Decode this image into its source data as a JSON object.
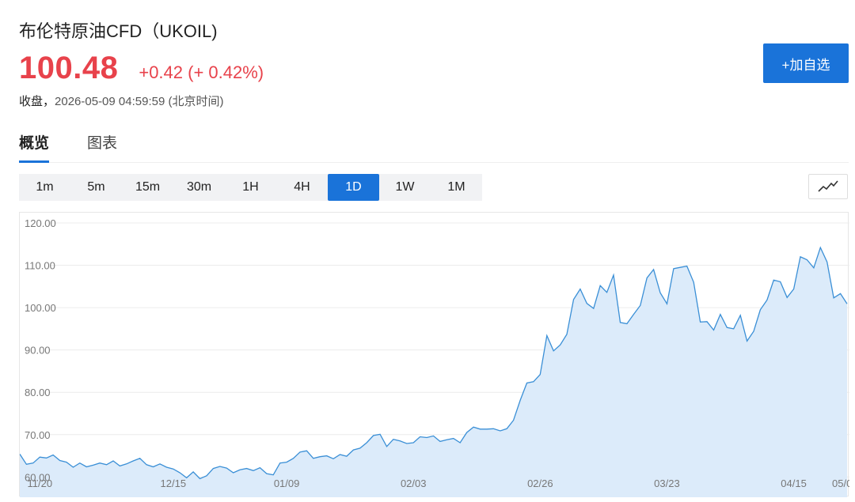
{
  "header": {
    "title": "布伦特原油CFD（UKOIL)",
    "price": "100.48",
    "change": "+0.42 (+ 0.42%)",
    "status": "收盘，",
    "timestamp": "2026-05-09 04:59:59",
    "timezone": "(北京时间)",
    "watch_button": "+加自选"
  },
  "tabs": [
    {
      "label": "概览",
      "active": true
    },
    {
      "label": "图表",
      "active": false
    }
  ],
  "intervals": [
    {
      "label": "1m",
      "active": false
    },
    {
      "label": "5m",
      "active": false
    },
    {
      "label": "15m",
      "active": false
    },
    {
      "label": "30m",
      "active": false
    },
    {
      "label": "1H",
      "active": false
    },
    {
      "label": "4H",
      "active": false
    },
    {
      "label": "1D",
      "active": true
    },
    {
      "label": "1W",
      "active": false
    },
    {
      "label": "1M",
      "active": false
    }
  ],
  "chart_type_icon": "line-chart-icon",
  "colors": {
    "accent": "#1a73d9",
    "up": "#e8424b",
    "line": "#3a8fd6",
    "area": "#dcebfa"
  },
  "chart_data": {
    "type": "area",
    "ylim": [
      59.2,
      122
    ],
    "y_ticks": [
      120,
      110,
      100,
      90,
      80,
      70,
      60
    ],
    "y_tick_labels": [
      "120.00",
      "110.00",
      "100.00",
      "90.00",
      "80.00",
      "70.00",
      "60.00"
    ],
    "x_tick_labels": [
      "11/20",
      "12/15",
      "01/09",
      "02/03",
      "02/26",
      "03/23",
      "04/15",
      "05/0"
    ],
    "x_tick_index": [
      3,
      23,
      40,
      59,
      78,
      97,
      116,
      135
    ],
    "values": [
      65.4,
      63.0,
      63.3,
      64.7,
      64.5,
      65.2,
      63.9,
      63.5,
      62.3,
      63.3,
      62.4,
      62.8,
      63.3,
      62.9,
      63.8,
      62.6,
      63.1,
      63.8,
      64.4,
      62.9,
      62.4,
      63.1,
      62.3,
      61.9,
      61.0,
      59.8,
      61.2,
      59.6,
      60.3,
      62.0,
      62.5,
      62.1,
      61.0,
      61.7,
      62.0,
      61.5,
      62.2,
      60.8,
      60.5,
      63.3,
      63.5,
      64.4,
      65.9,
      66.2,
      64.4,
      64.8,
      65.0,
      64.3,
      65.3,
      64.9,
      66.4,
      66.8,
      68.1,
      69.8,
      70.1,
      67.2,
      68.9,
      68.5,
      67.9,
      68.1,
      69.5,
      69.3,
      69.7,
      68.4,
      68.8,
      69.1,
      68.1,
      70.5,
      71.8,
      71.3,
      71.3,
      71.4,
      70.9,
      71.4,
      73.4,
      78.1,
      82.2,
      82.5,
      84.2,
      93.4,
      89.8,
      91.2,
      93.7,
      101.9,
      104.4,
      101.0,
      99.8,
      105.2,
      103.6,
      107.7,
      96.5,
      96.2,
      98.4,
      100.5,
      107.0,
      109.0,
      103.5,
      100.9,
      109.2,
      109.5,
      109.8,
      106.0,
      96.6,
      96.7,
      94.7,
      98.4,
      95.3,
      95.0,
      98.2,
      92.1,
      94.4,
      99.5,
      101.8,
      106.5,
      106.1,
      102.4,
      104.4,
      112.0,
      111.3,
      109.4,
      114.2,
      110.8,
      102.3,
      103.3,
      100.9
    ],
    "grid": true
  }
}
